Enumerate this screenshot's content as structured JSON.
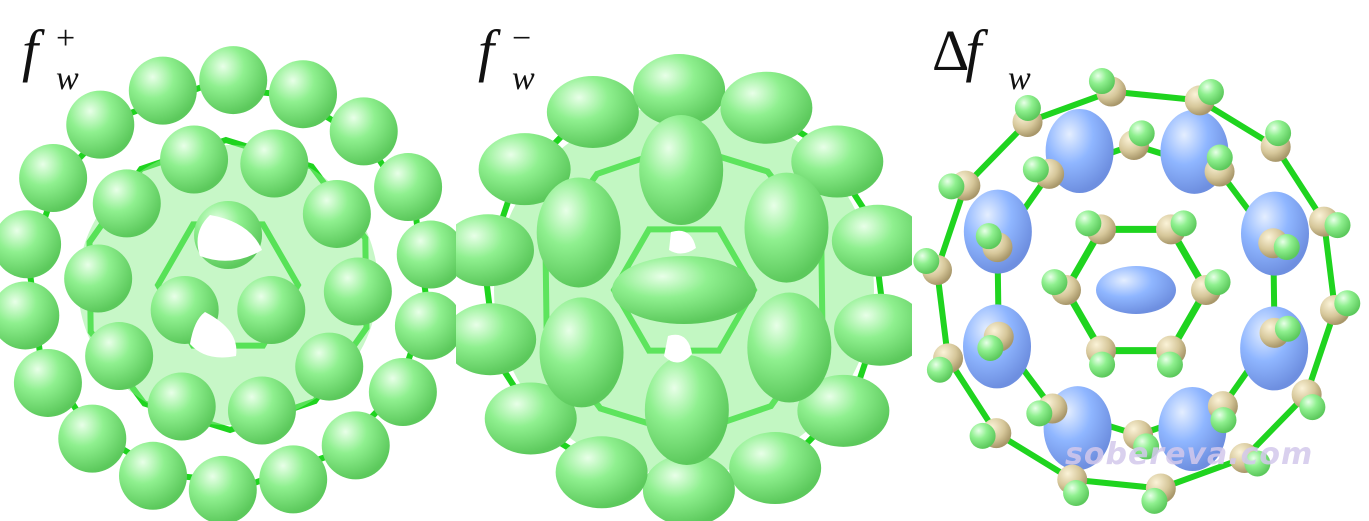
{
  "panels": [
    {
      "symbol": "",
      "main": "f",
      "sub": "w",
      "sup": "+"
    },
    {
      "symbol": "",
      "main": "f",
      "sub": "w",
      "sup": "−"
    },
    {
      "symbol": "Δ",
      "main": "f",
      "sub": "w",
      "sup": ""
    }
  ],
  "watermark": "sobereva.com",
  "colors": {
    "isosurface_green": "#8ff08f",
    "isosurface_blue": "#8fb6ff",
    "bond_green": "#1fd41f",
    "atom_tan": "#d6c79a",
    "label_text": "#111111"
  }
}
